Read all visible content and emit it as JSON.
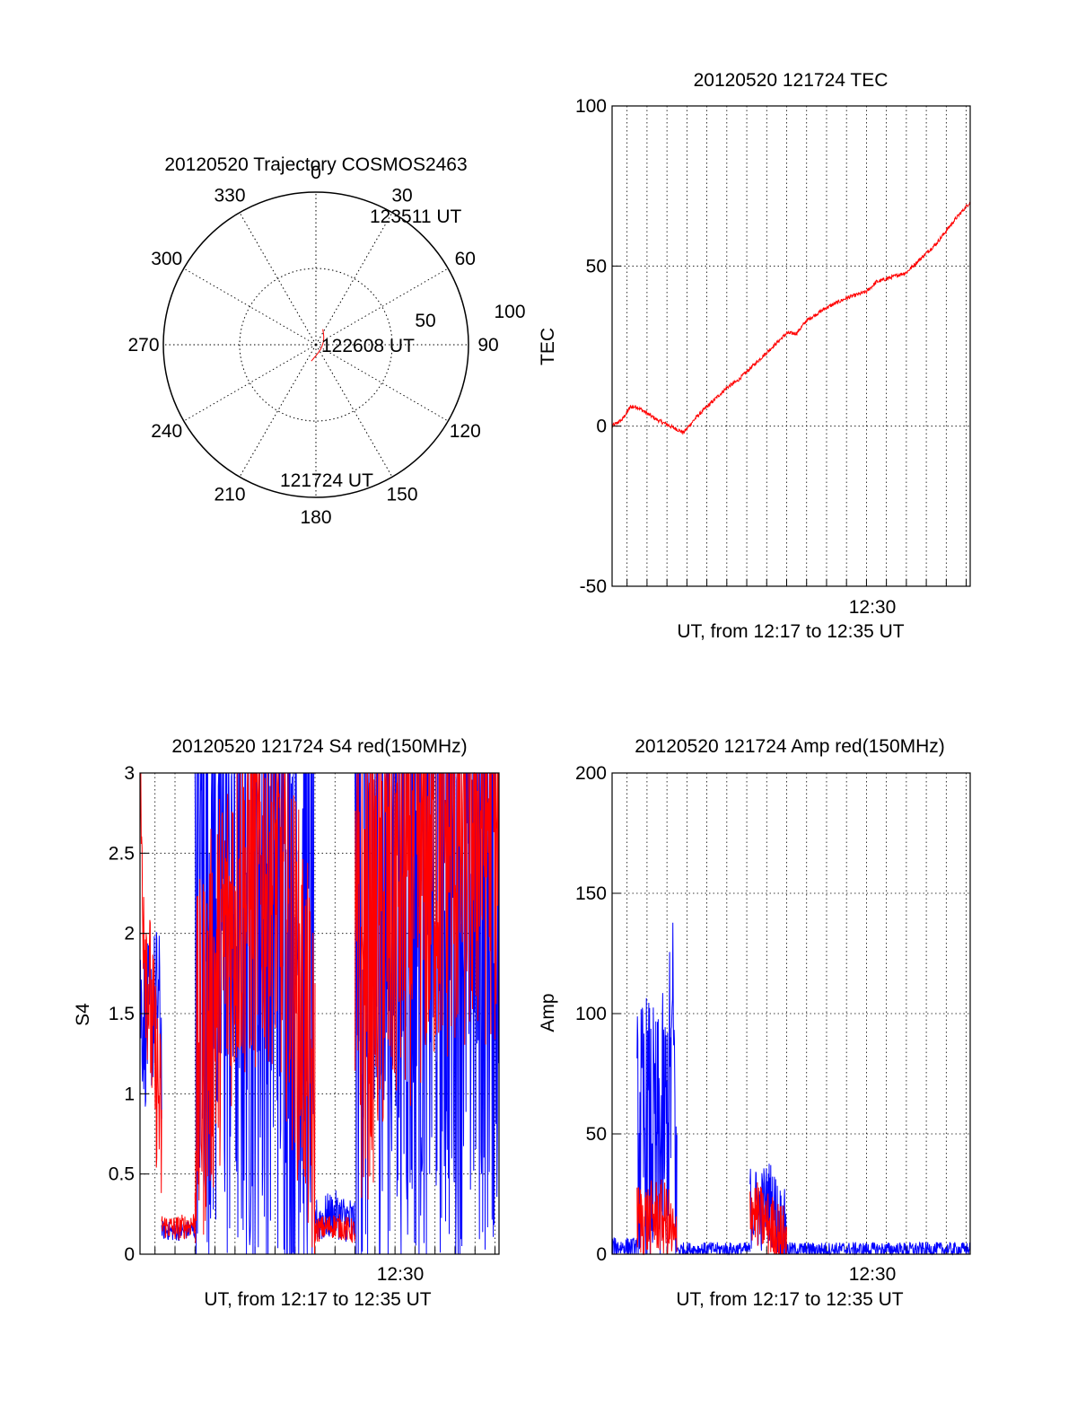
{
  "colors": {
    "red": "#ff0000",
    "blue": "#0000ff",
    "axis": "#000000",
    "grid": "#000000"
  },
  "chart_data": [
    {
      "id": "polar",
      "type": "polar",
      "title": "20120520 Trajectory COSMOS2463",
      "angle_labels": [
        "0",
        "30",
        "60",
        "90",
        "120",
        "150",
        "180",
        "210",
        "240",
        "270",
        "300",
        "330"
      ],
      "radius_labels": [
        "50",
        "100"
      ],
      "rlim": [
        0,
        100
      ],
      "track": {
        "azimuth_start": 196,
        "elevation_start": 80,
        "azimuth_end": 24,
        "elevation_end": 80,
        "azimuth_mid": 200,
        "elevation_mid": 1
      },
      "point_labels": [
        "123511 UT",
        "122608 UT",
        "121724 UT"
      ]
    },
    {
      "id": "tec",
      "type": "line",
      "title": "20120520 121724 TEC",
      "ylabel": "TEC",
      "xlabel": "UT, from 12:17 to 12:35 UT",
      "xtick_label": "12:30",
      "xlim": [
        "12:17:15",
        "12:35:12"
      ],
      "ylim": [
        -50,
        100
      ],
      "yticks": [
        "-50",
        "0",
        "50",
        "100"
      ],
      "series": [
        {
          "color": "red",
          "x": [
            "12:17:15",
            "12:17:45",
            "12:18:10",
            "12:18:30",
            "12:19:30",
            "12:20:30",
            "12:20:50",
            "12:21:30",
            "12:22:00",
            "12:22:30",
            "12:23:00",
            "12:23:30",
            "12:24:30",
            "12:25:30",
            "12:26:00",
            "12:26:30",
            "12:27:00",
            "12:27:30",
            "12:28:00",
            "12:29:00",
            "12:30:00",
            "12:30:30",
            "12:31:00",
            "12:32:00",
            "12:32:30",
            "12:33:00",
            "12:33:30",
            "12:34:00",
            "12:34:30",
            "12:35:12"
          ],
          "y": [
            0,
            2,
            6,
            6,
            2,
            -1,
            -2,
            3,
            6,
            9,
            12,
            14,
            20,
            26,
            29,
            29,
            33,
            35,
            37,
            40,
            42,
            45,
            46,
            48,
            51,
            54,
            57,
            61,
            65,
            70
          ]
        }
      ]
    },
    {
      "id": "s4",
      "type": "line",
      "title": "20120520 121724 S4 red(150MHz)",
      "ylabel": "S4",
      "xlabel": "UT, from 12:17 to 12:35 UT",
      "xtick_label": "12:30",
      "xlim": [
        "12:17:15",
        "12:35:12"
      ],
      "ylim": [
        0,
        3
      ],
      "yticks": [
        "0",
        "0.5",
        "1",
        "1.5",
        "2",
        "2.5",
        "3"
      ],
      "series": [
        {
          "color": "blue",
          "segments": [
            {
              "x": [
                "12:17:15",
                "12:17:30",
                "12:17:50",
                "12:18:10",
                "12:18:20"
              ],
              "y": [
                1.6,
                1.4,
                1.5,
                1.6,
                1.3
              ],
              "noise": 0.5
            },
            {
              "x": [
                "12:18:20",
                "12:19:00",
                "12:19:40",
                "12:20:00"
              ],
              "y": [
                0.15,
                0.14,
                0.15,
                0.15
              ],
              "noise": 0.06
            },
            {
              "x": [
                "12:20:00",
                "12:22:00",
                "12:24:00",
                "12:26:00"
              ],
              "y": [
                2.5,
                2.2,
                2.4,
                2.0
              ],
              "noise": 2.5
            },
            {
              "x": [
                "12:26:00",
                "12:27:00",
                "12:28:00"
              ],
              "y": [
                0.2,
                0.25,
                0.2
              ],
              "noise": 0.15
            },
            {
              "x": [
                "12:28:00",
                "12:30:00",
                "12:32:00",
                "12:34:00",
                "12:35:12"
              ],
              "y": [
                2.0,
                2.3,
                2.4,
                2.4,
                2.5
              ],
              "noise": 2.5
            }
          ]
        },
        {
          "color": "red",
          "segments": [
            {
              "x": [
                "12:17:15",
                "12:17:30",
                "12:17:50",
                "12:18:10",
                "12:18:20"
              ],
              "y": [
                2.8,
                2.0,
                1.4,
                1.0,
                0.7
              ],
              "noise": 0.6
            },
            {
              "x": [
                "12:18:20",
                "12:19:00",
                "12:19:40",
                "12:20:00"
              ],
              "y": [
                0.18,
                0.16,
                0.18,
                0.2
              ],
              "noise": 0.08
            },
            {
              "x": [
                "12:20:00",
                "12:21:00",
                "12:22:00",
                "12:24:00",
                "12:25:30",
                "12:26:00"
              ],
              "y": [
                1.0,
                1.6,
                2.2,
                2.4,
                1.4,
                0.8
              ],
              "noise": 1.2
            },
            {
              "x": [
                "12:26:00",
                "12:27:00",
                "12:28:00"
              ],
              "y": [
                0.15,
                0.18,
                0.14
              ],
              "noise": 0.08
            },
            {
              "x": [
                "12:28:00",
                "12:30:00",
                "12:32:00",
                "12:35:12"
              ],
              "y": [
                1.6,
                2.3,
                2.6,
                2.8
              ],
              "noise": 1.5
            }
          ]
        }
      ]
    },
    {
      "id": "amp",
      "type": "line",
      "title": "20120520 121724 Amp red(150MHz)",
      "ylabel": "Amp",
      "xlabel": "UT, from 12:17 to 12:35 UT",
      "xtick_label": "12:30",
      "xlim": [
        "12:17:15",
        "12:35:12"
      ],
      "ylim": [
        0,
        200
      ],
      "yticks": [
        "0",
        "50",
        "100",
        "150",
        "200"
      ],
      "series": [
        {
          "color": "blue",
          "segments": [
            {
              "x": [
                "12:17:15",
                "12:18:30"
              ],
              "y": [
                3,
                3
              ],
              "noise": 4
            },
            {
              "x": [
                "12:18:30",
                "12:19:00",
                "12:19:30",
                "12:20:00",
                "12:20:20",
                "12:20:30"
              ],
              "y": [
                45,
                50,
                40,
                55,
                90,
                2
              ],
              "noise": 60
            },
            {
              "x": [
                "12:20:30",
                "12:24:10"
              ],
              "y": [
                2,
                2
              ],
              "noise": 3
            },
            {
              "x": [
                "12:24:10",
                "12:24:40",
                "12:25:10",
                "12:25:40",
                "12:26:00"
              ],
              "y": [
                20,
                18,
                22,
                12,
                8
              ],
              "noise": 18
            },
            {
              "x": [
                "12:26:00",
                "12:35:12"
              ],
              "y": [
                2,
                2
              ],
              "noise": 3
            }
          ]
        },
        {
          "color": "red",
          "segments": [
            {
              "x": [
                "12:18:30",
                "12:19:00",
                "12:19:30",
                "12:20:00",
                "12:20:30"
              ],
              "y": [
                15,
                14,
                16,
                14,
                2
              ],
              "noise": 16
            },
            {
              "x": [
                "12:24:10",
                "12:24:40",
                "12:25:10",
                "12:25:40",
                "12:26:00"
              ],
              "y": [
                20,
                15,
                12,
                8,
                6
              ],
              "noise": 14
            }
          ]
        }
      ]
    }
  ]
}
